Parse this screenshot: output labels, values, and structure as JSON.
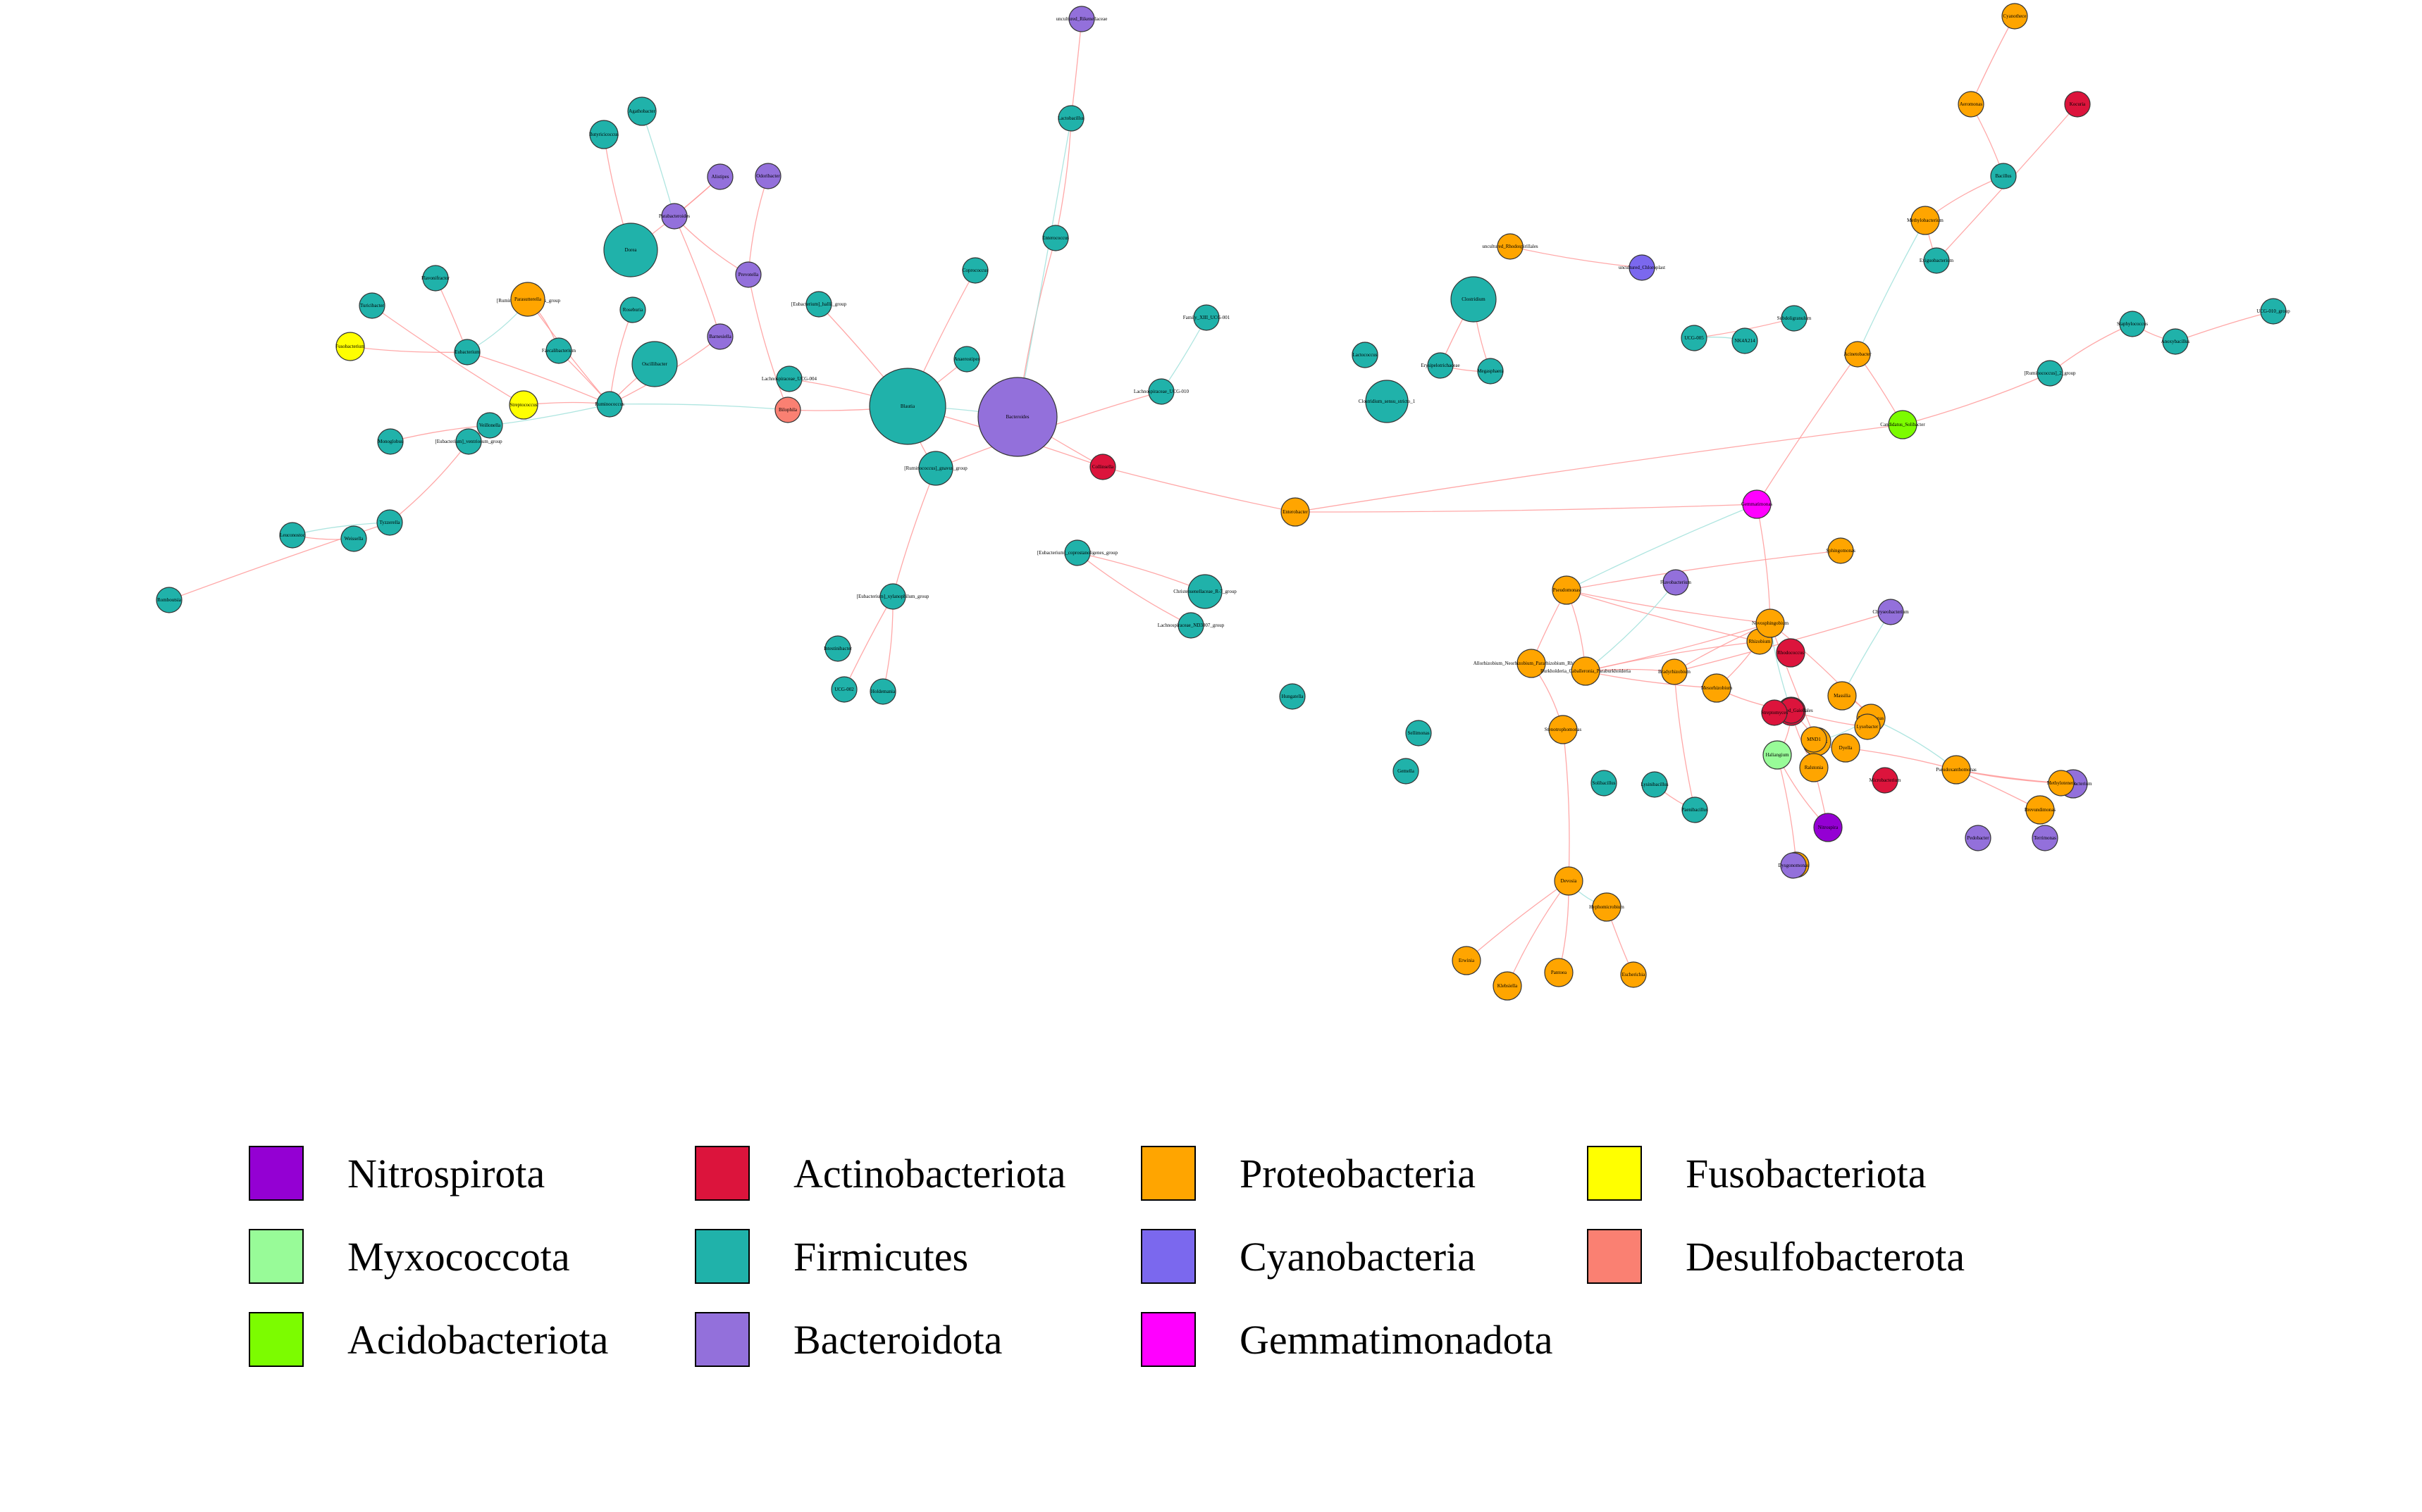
{
  "colors": {
    "Nitrospirota": "#9400D3",
    "Actinobacteriota": "#DC143C",
    "Proteobacteria": "#FFA500",
    "Fusobacteriota": "#FFFF00",
    "Myxococcota": "#98FB98",
    "Firmicutes": "#20B2AA",
    "Cyanobacteria": "#7B68EE",
    "Desulfobacterota": "#FA8072",
    "Acidobacteriota": "#7CFC00",
    "Bacteroidota": "#9370DB",
    "Gemmatimonadota": "#FF00FF",
    "edge": "#FF9999",
    "edge_secondary": "#A0E0DA"
  },
  "legend": [
    {
      "label": "Nitrospirota",
      "color_key": "Nitrospirota"
    },
    {
      "label": "Myxococcota",
      "color_key": "Myxococcota"
    },
    {
      "label": "Acidobacteriota",
      "color_key": "Acidobacteriota"
    },
    {
      "label": "Actinobacteriota",
      "color_key": "Actinobacteriota"
    },
    {
      "label": "Firmicutes",
      "color_key": "Firmicutes"
    },
    {
      "label": "Bacteroidota",
      "color_key": "Bacteroidota"
    },
    {
      "label": "Proteobacteria",
      "color_key": "Proteobacteria"
    },
    {
      "label": "Cyanobacteria",
      "color_key": "Cyanobacteria"
    },
    {
      "label": "Gemmatimonadota",
      "color_key": "Gemmatimonadota"
    },
    {
      "label": "Fusobacteriota",
      "color_key": "Fusobacteriota"
    },
    {
      "label": "Desulfobacterota",
      "color_key": "Desulfobacterota"
    }
  ],
  "network": {
    "nodes": [
      {
        "id": "n1",
        "label": "Blautia",
        "phylum": "Firmicutes"
      },
      {
        "id": "n2",
        "label": "Bacteroides",
        "phylum": "Bacteroidota"
      },
      {
        "id": "n3",
        "label": "Bilophila",
        "phylum": "Desulfobacterota"
      },
      {
        "id": "n4",
        "label": "Collinsella",
        "phylum": "Actinobacteriota"
      },
      {
        "id": "n5",
        "label": "Enterobacter",
        "phylum": "Proteobacteria"
      },
      {
        "id": "n6",
        "label": "[Ruminococcus]_gnavus_group",
        "phylum": "Firmicutes"
      },
      {
        "id": "n7",
        "label": "Lachnospiraceae_UCG-004",
        "phylum": "Firmicutes"
      },
      {
        "id": "n8",
        "label": "Dorea",
        "phylum": "Firmicutes"
      },
      {
        "id": "n9",
        "label": "Oscillibacter",
        "phylum": "Firmicutes"
      },
      {
        "id": "n10",
        "label": "Ruminococcus",
        "phylum": "Firmicutes"
      },
      {
        "id": "n11",
        "label": "Faecalibacterium",
        "phylum": "Firmicutes"
      },
      {
        "id": "n12",
        "label": "Roseburia",
        "phylum": "Firmicutes"
      },
      {
        "id": "n13",
        "label": "Agathobacter",
        "phylum": "Firmicutes"
      },
      {
        "id": "n14",
        "label": "Butyricicoccus",
        "phylum": "Firmicutes"
      },
      {
        "id": "n15",
        "label": "Fusobacterium",
        "phylum": "Fusobacteriota"
      },
      {
        "id": "n16",
        "label": "Eubacterium",
        "phylum": "Firmicutes"
      },
      {
        "id": "n17",
        "label": "[Ruminococcus]_torques_group",
        "phylum": "Firmicutes"
      },
      {
        "id": "n18",
        "label": "Streptococcus",
        "phylum": "Fusobacteriota"
      },
      {
        "id": "n19",
        "label": "Parasutterella",
        "phylum": "Proteobacteria"
      },
      {
        "id": "n20",
        "label": "Veillonella",
        "phylum": "Firmicutes"
      },
      {
        "id": "n21",
        "label": "Alistipes",
        "phylum": "Bacteroidota"
      },
      {
        "id": "n22",
        "label": "Parabacteroides",
        "phylum": "Bacteroidota"
      },
      {
        "id": "n23",
        "label": "Prevotella",
        "phylum": "Bacteroidota"
      },
      {
        "id": "n24",
        "label": "Barnesiella",
        "phylum": "Bacteroidota"
      },
      {
        "id": "n25",
        "label": "Odoribacter",
        "phylum": "Bacteroidota"
      },
      {
        "id": "n26",
        "label": "uncultured_Rikenellaceae",
        "phylum": "Bacteroidota"
      },
      {
        "id": "n27",
        "label": "Lactobacillus",
        "phylum": "Firmicutes"
      },
      {
        "id": "n28",
        "label": "Enterococcus",
        "phylum": "Firmicutes"
      },
      {
        "id": "n29",
        "label": "Coprococcus",
        "phylum": "Firmicutes"
      },
      {
        "id": "n30",
        "label": "Anaerostipes",
        "phylum": "Firmicutes"
      },
      {
        "id": "n31",
        "label": "[Eubacterium]_hallii_group",
        "phylum": "Firmicutes"
      },
      {
        "id": "n32",
        "label": "Family_XIII_UCG-001",
        "phylum": "Firmicutes"
      },
      {
        "id": "n33",
        "label": "Lachnospiraceae_UCG-010",
        "phylum": "Firmicutes"
      },
      {
        "id": "n34",
        "label": "[Eubacterium]_coprostanoligenes_group",
        "phylum": "Firmicutes"
      },
      {
        "id": "n35",
        "label": "Christensenellaceae_R-7_group",
        "phylum": "Firmicutes"
      },
      {
        "id": "n36",
        "label": "Lachnospiraceae_ND3007_group",
        "phylum": "Firmicutes"
      },
      {
        "id": "n37",
        "label": "[Eubacterium]_xylanophilum_group",
        "phylum": "Firmicutes"
      },
      {
        "id": "n38",
        "label": "UCG-002",
        "phylum": "Firmicutes"
      },
      {
        "id": "n39",
        "label": "Holdemania",
        "phylum": "Firmicutes"
      },
      {
        "id": "n40",
        "label": "Intestinibacter",
        "phylum": "Firmicutes"
      },
      {
        "id": "n41",
        "label": "Romboutsia",
        "phylum": "Firmicutes"
      },
      {
        "id": "n42",
        "label": "Turicibacter",
        "phylum": "Firmicutes"
      },
      {
        "id": "n43",
        "label": "Clostridium",
        "phylum": "Firmicutes"
      },
      {
        "id": "n44",
        "label": "Megasphaera",
        "phylum": "Firmicutes"
      },
      {
        "id": "n45",
        "label": "Erysipelotrichaceae",
        "phylum": "Firmicutes"
      },
      {
        "id": "n46",
        "label": "Hungatella",
        "phylum": "Firmicutes"
      },
      {
        "id": "n47",
        "label": "Sellimonas",
        "phylum": "Firmicutes"
      },
      {
        "id": "n48",
        "label": "Gemella",
        "phylum": "Firmicutes"
      },
      {
        "id": "n49",
        "label": "[Eubacterium]_ventriosum_group",
        "phylum": "Firmicutes"
      },
      {
        "id": "n50",
        "label": "Monoglobus",
        "phylum": "Firmicutes"
      },
      {
        "id": "n51",
        "label": "Flavonifractor",
        "phylum": "Firmicutes"
      },
      {
        "id": "n52",
        "label": "Tyzzerella",
        "phylum": "Firmicutes"
      },
      {
        "id": "n53",
        "label": "Eggerthella",
        "phylum": "Actinobacteriota"
      },
      {
        "id": "n54",
        "label": "Bifidobacterium",
        "phylum": "Actinobacteriota"
      },
      {
        "id": "n55",
        "label": "Clostridium_sensu_stricto_1",
        "phylum": "Firmicutes"
      },
      {
        "id": "n56",
        "label": "Lactococcus",
        "phylum": "Firmicutes"
      },
      {
        "id": "n57",
        "label": "Leuconostoc",
        "phylum": "Firmicutes"
      },
      {
        "id": "n58",
        "label": "Weissella",
        "phylum": "Firmicutes"
      },
      {
        "id": "n59",
        "label": "uncultured_Rhodospirillales",
        "phylum": "Proteobacteria"
      },
      {
        "id": "n60",
        "label": "uncultured_Chloroplast",
        "phylum": "Cyanobacteria"
      },
      {
        "id": "n61",
        "label": "UCG-005",
        "phylum": "Firmicutes"
      },
      {
        "id": "n62",
        "label": "NK4A214",
        "phylum": "Firmicutes"
      },
      {
        "id": "n63",
        "label": "Subdoligranulum",
        "phylum": "Firmicutes"
      },
      {
        "id": "n64",
        "label": "Cyanothece",
        "phylum": "Proteobacteria"
      },
      {
        "id": "n65",
        "label": "Aeromonas",
        "phylum": "Proteobacteria"
      },
      {
        "id": "n66",
        "label": "Kocuria",
        "phylum": "Actinobacteriota"
      },
      {
        "id": "n67",
        "label": "Bacillus",
        "phylum": "Firmicutes"
      },
      {
        "id": "n68",
        "label": "Methylobacterium",
        "phylum": "Proteobacteria"
      },
      {
        "id": "n69",
        "label": "Exiguobacterium",
        "phylum": "Firmicutes"
      },
      {
        "id": "n70",
        "label": "Acinetobacter",
        "phylum": "Proteobacteria"
      },
      {
        "id": "n71",
        "label": "Staphylococcus",
        "phylum": "Firmicutes"
      },
      {
        "id": "n72",
        "label": "Anoxybacillus",
        "phylum": "Firmicutes"
      },
      {
        "id": "n73",
        "label": "UCG-010_group",
        "phylum": "Firmicutes"
      },
      {
        "id": "n74",
        "label": "[Ruminococcus]_2_group",
        "phylum": "Firmicutes"
      },
      {
        "id": "n75",
        "label": "Candidatus_Solibacter",
        "phylum": "Acidobacteriota"
      },
      {
        "id": "n76",
        "label": "Gemmatimonas",
        "phylum": "Gemmatimonadota"
      },
      {
        "id": "n77",
        "label": "Sphingomonas",
        "phylum": "Proteobacteria"
      },
      {
        "id": "n78",
        "label": "Chryseobacterium",
        "phylum": "Bacteroidota"
      },
      {
        "id": "n79",
        "label": "Pseudomonas",
        "phylum": "Proteobacteria"
      },
      {
        "id": "n80",
        "label": "Flavobacterium",
        "phylum": "Bacteroidota"
      },
      {
        "id": "n81",
        "label": "Rhodococcus",
        "phylum": "Actinobacteriota"
      },
      {
        "id": "n82",
        "label": "Rhizobium",
        "phylum": "Proteobacteria"
      },
      {
        "id": "n83",
        "label": "Allorhizobium_Neorhizobium_Pararhizobium_Rhizobium",
        "phylum": "Proteobacteria"
      },
      {
        "id": "n84",
        "label": "Burkholderia_Caballeronia_Paraburkholderia",
        "phylum": "Proteobacteria"
      },
      {
        "id": "n85",
        "label": "Stenotrophomonas",
        "phylum": "Proteobacteria"
      },
      {
        "id": "n86",
        "label": "Bradyrhizobium",
        "phylum": "Proteobacteria"
      },
      {
        "id": "n87",
        "label": "Mesorhizobium",
        "phylum": "Proteobacteria"
      },
      {
        "id": "n88",
        "label": "Novosphingobium",
        "phylum": "Proteobacteria"
      },
      {
        "id": "n89",
        "label": "Nocardioides",
        "phylum": "Actinobacteriota"
      },
      {
        "id": "n90",
        "label": "Microbacterium",
        "phylum": "Actinobacteriota"
      },
      {
        "id": "n91",
        "label": "Variovorax",
        "phylum": "Proteobacteria"
      },
      {
        "id": "n92",
        "label": "Haliangium",
        "phylum": "Myxococcota"
      },
      {
        "id": "n93",
        "label": "Ralstonia",
        "phylum": "Proteobacteria"
      },
      {
        "id": "n94",
        "label": "MND1",
        "phylum": "Proteobacteria"
      },
      {
        "id": "n95",
        "label": "Dyella",
        "phylum": "Proteobacteria"
      },
      {
        "id": "n96",
        "label": "Polaromonas",
        "phylum": "Proteobacteria"
      },
      {
        "id": "n97",
        "label": "Massilia",
        "phylum": "Proteobacteria"
      },
      {
        "id": "n98",
        "label": "Nitrospira",
        "phylum": "Nitrospirota"
      },
      {
        "id": "n99",
        "label": "Pedobacter",
        "phylum": "Bacteroidota"
      },
      {
        "id": "n100",
        "label": "Paenibacillus",
        "phylum": "Firmicutes"
      },
      {
        "id": "n101",
        "label": "uncultured_Gaiellales",
        "phylum": "Actinobacteriota"
      },
      {
        "id": "n102",
        "label": "Lysobacter",
        "phylum": "Proteobacteria"
      },
      {
        "id": "n103",
        "label": "Streptomyces",
        "phylum": "Actinobacteriota"
      },
      {
        "id": "n104",
        "label": "Sediminibacterium",
        "phylum": "Bacteroidota"
      },
      {
        "id": "n105",
        "label": "Terrimonas",
        "phylum": "Bacteroidota"
      },
      {
        "id": "n106",
        "label": "Pseudoxanthomonas",
        "phylum": "Proteobacteria"
      },
      {
        "id": "n107",
        "label": "Brevundimonas",
        "phylum": "Proteobacteria"
      },
      {
        "id": "n108",
        "label": "Methylotenera",
        "phylum": "Proteobacteria"
      },
      {
        "id": "n109",
        "label": "Bosea",
        "phylum": "Proteobacteria"
      },
      {
        "id": "n110",
        "label": "Devosia",
        "phylum": "Proteobacteria"
      },
      {
        "id": "n111",
        "label": "Hyphomicrobium",
        "phylum": "Proteobacteria"
      },
      {
        "id": "n112",
        "label": "Erwinia",
        "phylum": "Proteobacteria"
      },
      {
        "id": "n113",
        "label": "Pantoea",
        "phylum": "Proteobacteria"
      },
      {
        "id": "n114",
        "label": "Klebsiella",
        "phylum": "Proteobacteria"
      },
      {
        "id": "n115",
        "label": "Escherichia",
        "phylum": "Proteobacteria"
      },
      {
        "id": "n116",
        "label": "Lysinibacillus",
        "phylum": "Firmicutes"
      },
      {
        "id": "n117",
        "label": "Solibacillus",
        "phylum": "Firmicutes"
      },
      {
        "id": "n118",
        "label": "Dysgonomonas",
        "phylum": "Bacteroidota"
      }
    ]
  }
}
